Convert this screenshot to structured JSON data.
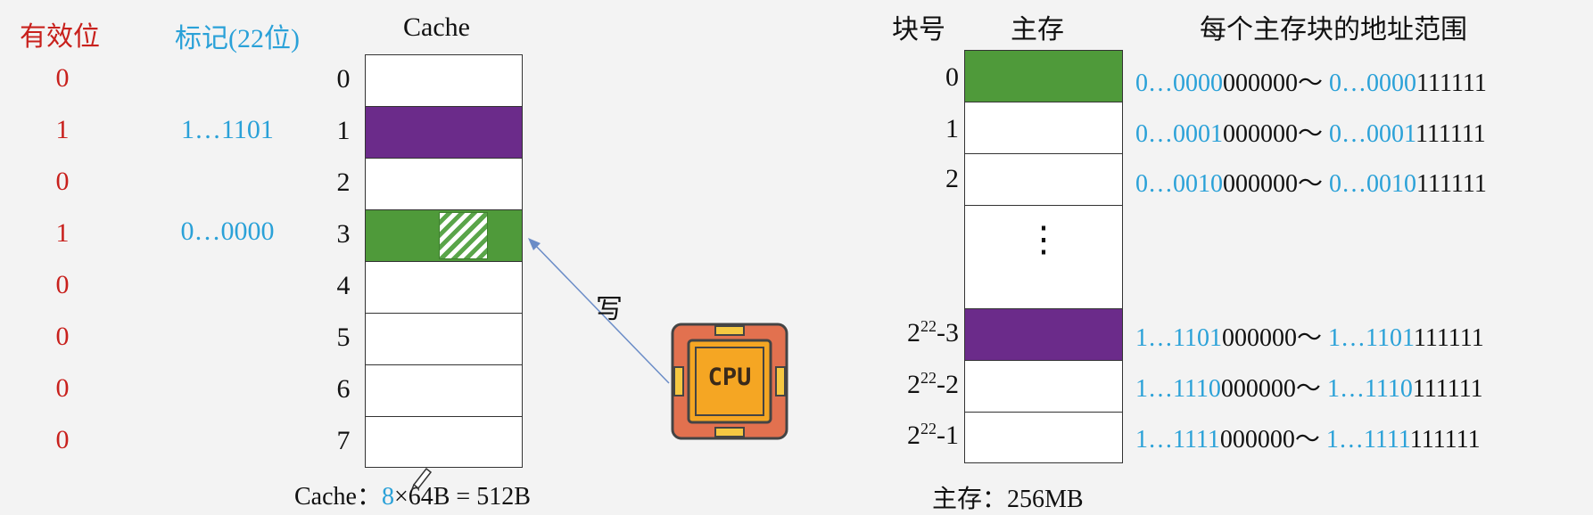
{
  "headers": {
    "valid": "有效位",
    "tag": "标记(22位)",
    "cache": "Cache",
    "block_no": "块号",
    "main_memory": "主存",
    "address_range": "每个主存块的地址范围"
  },
  "colors": {
    "valid": "#c8201c",
    "tag": "#2aa1d8",
    "green": "#4f9a3a",
    "purple": "#6b2b8a",
    "cpu_frame": "#e2714f",
    "cpu_core": "#f5a623"
  },
  "cache": {
    "valid_bits": [
      "0",
      "1",
      "0",
      "1",
      "0",
      "0",
      "0",
      "0"
    ],
    "tags": [
      "",
      "1…1101",
      "",
      "0…0000",
      "",
      "",
      "",
      ""
    ],
    "line_indices": [
      "0",
      "1",
      "2",
      "3",
      "4",
      "5",
      "6",
      "7"
    ],
    "line_fill": [
      "empty",
      "purple",
      "empty",
      "green",
      "empty",
      "empty",
      "empty",
      "empty"
    ],
    "caption_prefix": "Cache：",
    "caption_count": "8",
    "caption_rest": "×64B = 512B"
  },
  "cpu": {
    "label": "CPU",
    "write_label": "写"
  },
  "memory": {
    "caption": "主存：256MB",
    "ellipsis": "⋮",
    "blocks": [
      {
        "base": "0",
        "exp": "",
        "suffix": "",
        "fill": "green",
        "addr_blue1": "0…0000",
        "addr_black1": "000000～ ",
        "addr_blue2": "0…0000",
        "addr_black2": "111111"
      },
      {
        "base": "1",
        "exp": "",
        "suffix": "",
        "fill": "empty",
        "addr_blue1": "0…0001",
        "addr_black1": "000000～ ",
        "addr_blue2": "0…0001",
        "addr_black2": "111111"
      },
      {
        "base": "2",
        "exp": "",
        "suffix": "",
        "fill": "empty",
        "addr_blue1": "0…0010",
        "addr_black1": "000000～ ",
        "addr_blue2": "0…0010",
        "addr_black2": "111111"
      },
      {
        "base": "2",
        "exp": "22",
        "suffix": "-3",
        "fill": "purple",
        "addr_blue1": "1…1101",
        "addr_black1": "000000～ ",
        "addr_blue2": "1…1101",
        "addr_black2": "111111"
      },
      {
        "base": "2",
        "exp": "22",
        "suffix": "-2",
        "fill": "empty",
        "addr_blue1": "1…1110",
        "addr_black1": "000000～ ",
        "addr_blue2": "1…1110",
        "addr_black2": "111111"
      },
      {
        "base": "2",
        "exp": "22",
        "suffix": "-1",
        "fill": "empty",
        "addr_blue1": "1…1111",
        "addr_black1": "000000～ ",
        "addr_blue2": "1…1111",
        "addr_black2": "111111"
      }
    ]
  }
}
